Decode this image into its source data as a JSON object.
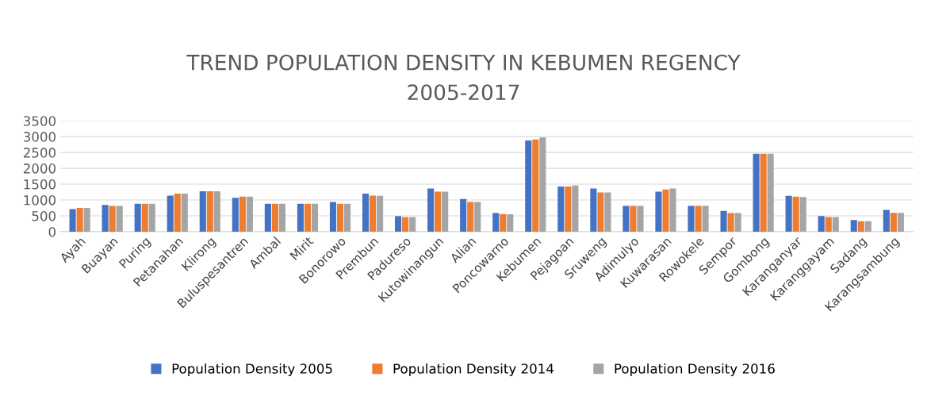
{
  "chart_data": {
    "type": "bar",
    "title": "TREND POPULATION DENSITY IN KEBUMEN REGENCY\n2005-2017",
    "categories": [
      "Ayah",
      "Buayan",
      "Puring",
      "Petanahan",
      "Klirong",
      "Buluspesantren",
      "Ambal",
      "Mirit",
      "Bonorowo",
      "Prembun",
      "Padureso",
      "Kutowinangun",
      "Alian",
      "Poncowarno",
      "Kebumen",
      "Pejagoan",
      "Sruweng",
      "Adimulyo",
      "Kuwarasan",
      "Rowokele",
      "Sempor",
      "Gombong",
      "Karanganyar",
      "Karanggayam",
      "Sadang",
      "Karangsambung"
    ],
    "series": [
      {
        "name": "Population Density 2005",
        "color": "#4472c4",
        "values": [
          710,
          845,
          880,
          1135,
          1275,
          1070,
          880,
          880,
          935,
          1200,
          490,
          1360,
          1030,
          590,
          2880,
          1425,
          1360,
          815,
          1265,
          815,
          655,
          2460,
          1130,
          490,
          365,
          685
        ]
      },
      {
        "name": "Population Density 2014",
        "color": "#ed7d31",
        "values": [
          750,
          815,
          880,
          1200,
          1275,
          1105,
          880,
          880,
          880,
          1135,
          460,
          1265,
          935,
          555,
          2910,
          1425,
          1235,
          815,
          1330,
          815,
          590,
          2460,
          1105,
          460,
          330,
          590
        ]
      },
      {
        "name": "Population Density 2016",
        "color": "#a5a5a5",
        "values": [
          750,
          815,
          880,
          1200,
          1275,
          1105,
          880,
          880,
          880,
          1130,
          460,
          1265,
          935,
          550,
          2975,
          1460,
          1235,
          815,
          1360,
          815,
          590,
          2460,
          1095,
          460,
          330,
          590
        ]
      }
    ],
    "ylim": [
      0,
      3500
    ],
    "yticks": [
      0,
      500,
      1000,
      1500,
      2000,
      2500,
      3000,
      3500
    ],
    "grid": "y",
    "legend": "bottom"
  }
}
